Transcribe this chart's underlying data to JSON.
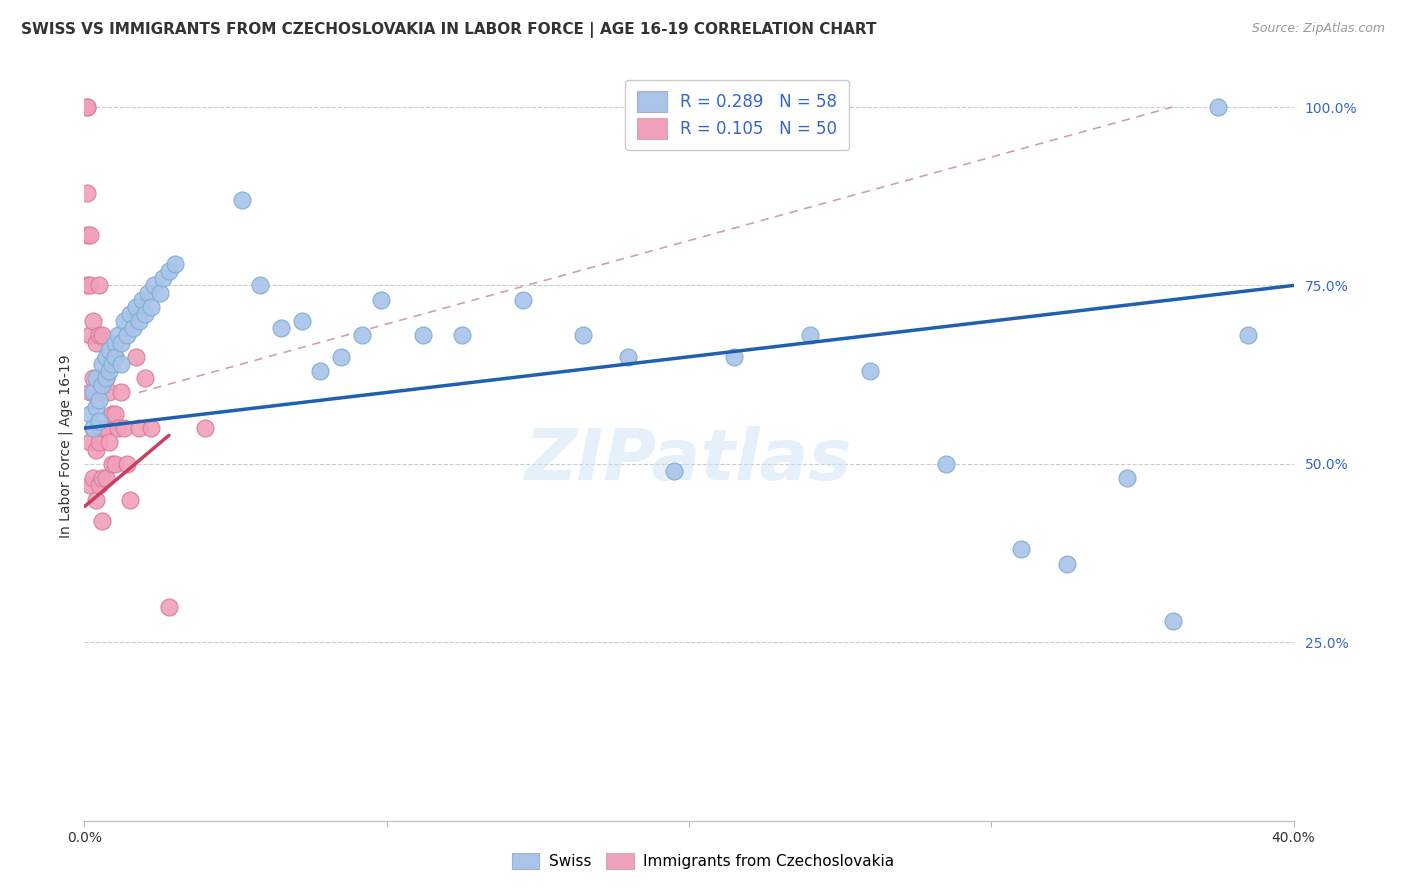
{
  "title": "SWISS VS IMMIGRANTS FROM CZECHOSLOVAKIA IN LABOR FORCE | AGE 16-19 CORRELATION CHART",
  "source": "Source: ZipAtlas.com",
  "ylabel": "In Labor Force | Age 16-19",
  "xlim": [
    0.0,
    0.4
  ],
  "ylim": [
    0.0,
    1.05
  ],
  "swiss_color": "#a8c4e8",
  "swiss_edge_color": "#7aaad4",
  "swiss_line_color": "#2060b0",
  "immig_color": "#f0a0b8",
  "immig_edge_color": "#d87898",
  "immig_line_color": "#c84060",
  "ref_line_color": "#d0a0a8",
  "background_color": "#ffffff",
  "grid_color": "#cccccc",
  "watermark": "ZIPatlas",
  "swiss_x": [
    0.002,
    0.003,
    0.003,
    0.004,
    0.004,
    0.005,
    0.005,
    0.006,
    0.006,
    0.007,
    0.007,
    0.008,
    0.008,
    0.009,
    0.01,
    0.01,
    0.011,
    0.012,
    0.012,
    0.013,
    0.014,
    0.015,
    0.016,
    0.017,
    0.018,
    0.019,
    0.02,
    0.021,
    0.022,
    0.023,
    0.025,
    0.026,
    0.028,
    0.03,
    0.052,
    0.058,
    0.065,
    0.072,
    0.078,
    0.085,
    0.092,
    0.098,
    0.112,
    0.125,
    0.145,
    0.165,
    0.18,
    0.195,
    0.215,
    0.24,
    0.26,
    0.285,
    0.31,
    0.325,
    0.345,
    0.36,
    0.375,
    0.385
  ],
  "swiss_y": [
    0.57,
    0.6,
    0.55,
    0.62,
    0.58,
    0.59,
    0.56,
    0.64,
    0.61,
    0.65,
    0.62,
    0.63,
    0.66,
    0.64,
    0.67,
    0.65,
    0.68,
    0.67,
    0.64,
    0.7,
    0.68,
    0.71,
    0.69,
    0.72,
    0.7,
    0.73,
    0.71,
    0.74,
    0.72,
    0.75,
    0.74,
    0.76,
    0.77,
    0.78,
    0.87,
    0.75,
    0.69,
    0.7,
    0.63,
    0.65,
    0.68,
    0.73,
    0.68,
    0.68,
    0.73,
    0.68,
    0.65,
    0.49,
    0.65,
    0.68,
    0.63,
    0.5,
    0.38,
    0.36,
    0.48,
    0.28,
    1.0,
    0.68
  ],
  "immig_x": [
    0.001,
    0.001,
    0.001,
    0.001,
    0.001,
    0.002,
    0.002,
    0.002,
    0.002,
    0.002,
    0.002,
    0.003,
    0.003,
    0.003,
    0.003,
    0.004,
    0.004,
    0.004,
    0.004,
    0.005,
    0.005,
    0.005,
    0.005,
    0.005,
    0.006,
    0.006,
    0.006,
    0.006,
    0.006,
    0.007,
    0.007,
    0.007,
    0.008,
    0.008,
    0.009,
    0.009,
    0.01,
    0.01,
    0.01,
    0.011,
    0.012,
    0.013,
    0.014,
    0.015,
    0.017,
    0.018,
    0.02,
    0.022,
    0.028,
    0.04
  ],
  "immig_y": [
    1.0,
    1.0,
    0.88,
    0.82,
    0.75,
    0.82,
    0.75,
    0.68,
    0.6,
    0.53,
    0.47,
    0.7,
    0.62,
    0.55,
    0.48,
    0.67,
    0.6,
    0.52,
    0.45,
    0.75,
    0.68,
    0.6,
    0.53,
    0.47,
    0.68,
    0.61,
    0.55,
    0.48,
    0.42,
    0.62,
    0.55,
    0.48,
    0.6,
    0.53,
    0.57,
    0.5,
    0.65,
    0.57,
    0.5,
    0.55,
    0.6,
    0.55,
    0.5,
    0.45,
    0.65,
    0.55,
    0.62,
    0.55,
    0.3,
    0.55
  ],
  "swiss_R": 0.289,
  "swiss_N": 58,
  "immig_R": 0.105,
  "immig_N": 50,
  "title_fontsize": 11,
  "axis_label_fontsize": 10,
  "tick_fontsize": 10,
  "legend_fontsize": 12,
  "source_fontsize": 9
}
